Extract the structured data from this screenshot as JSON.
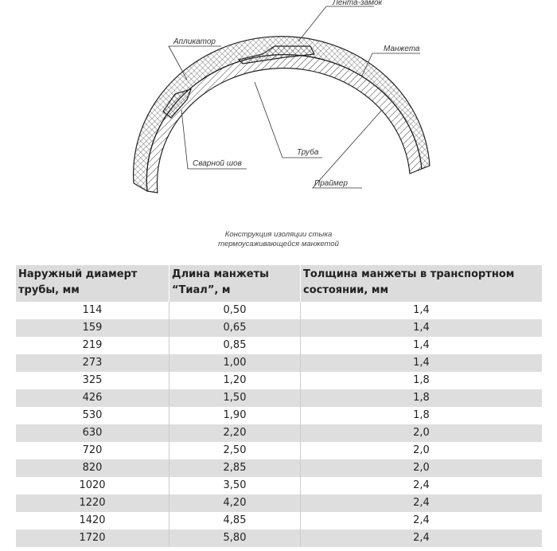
{
  "diagram": {
    "labels": {
      "tape": "Лента-замок",
      "applicator": "Апликатор",
      "sleeve": "Манжета",
      "pipe": "Труба",
      "weld": "Сварной шов",
      "primer": "Праймер"
    },
    "caption_line1": "Конструкция изоляции стыка",
    "caption_line2": "термоусаживающейся манжетой"
  },
  "table": {
    "headers": [
      "Наружный диамерт трубы, мм",
      "Длина манжеты “Тиал”, м",
      "Толщина манжеты в транспортном состоянии, мм"
    ],
    "rows": [
      [
        "114",
        "0,50",
        "1,4"
      ],
      [
        "159",
        "0,65",
        "1,4"
      ],
      [
        "219",
        "0,85",
        "1,4"
      ],
      [
        "273",
        "1,00",
        "1,4"
      ],
      [
        "325",
        "1,20",
        "1,8"
      ],
      [
        "426",
        "1,50",
        "1,8"
      ],
      [
        "530",
        "1,90",
        "1,8"
      ],
      [
        "630",
        "2,20",
        "2,0"
      ],
      [
        "720",
        "2,50",
        "2,0"
      ],
      [
        "820",
        "2,85",
        "2,0"
      ],
      [
        "1020",
        "3,50",
        "2,4"
      ],
      [
        "1220",
        "4,20",
        "2,4"
      ],
      [
        "1420",
        "4,85",
        "2,4"
      ],
      [
        "1720",
        "5,80",
        "2,4"
      ]
    ]
  }
}
